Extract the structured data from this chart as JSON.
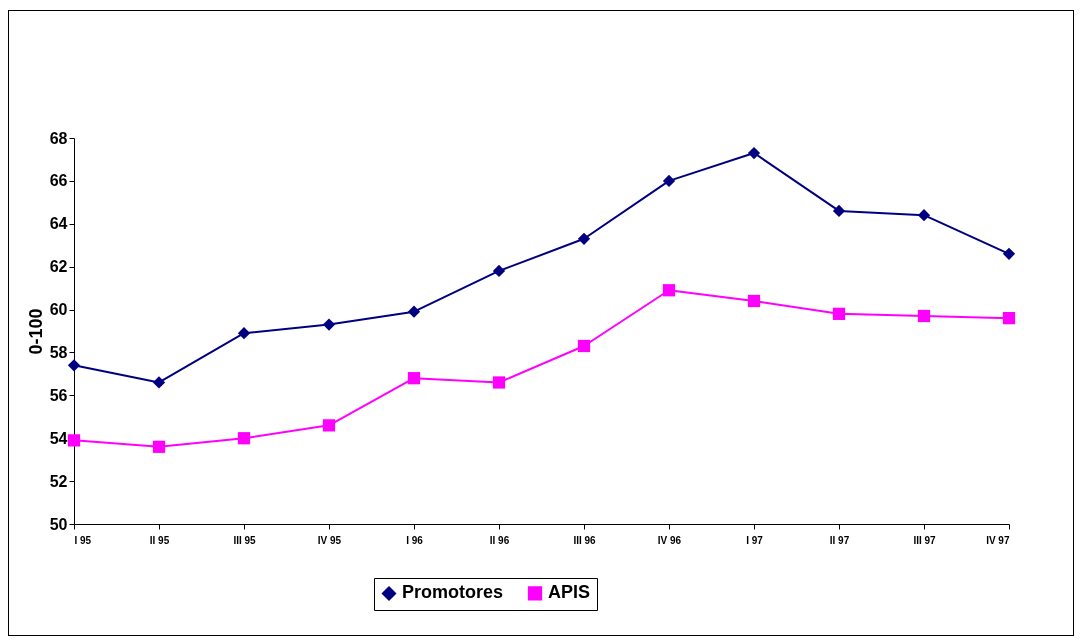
{
  "chart_data": {
    "type": "line",
    "ylabel": "0-100",
    "categories": [
      "I 95",
      "II 95",
      "III 95",
      "IV 95",
      "I 96",
      "II 96",
      "III 96",
      "IV 96",
      "I 97",
      "II 97",
      "III 97",
      "IV 97"
    ],
    "series": [
      {
        "name": "Promotores",
        "color": "#000080",
        "marker": "diamond",
        "values": [
          57.4,
          56.6,
          58.9,
          59.3,
          59.9,
          61.8,
          63.3,
          66.0,
          67.3,
          64.6,
          64.4,
          62.6
        ]
      },
      {
        "name": "APIS",
        "color": "#ff00ff",
        "marker": "square",
        "values": [
          53.9,
          53.6,
          54.0,
          54.6,
          56.8,
          56.6,
          58.3,
          60.9,
          60.4,
          59.8,
          59.7,
          59.6
        ]
      }
    ],
    "ylim": [
      50,
      68
    ],
    "yticks": [
      50,
      52,
      54,
      56,
      58,
      60,
      62,
      64,
      66,
      68
    ],
    "grid": false,
    "legend": "bottom",
    "line_style": "solid"
  }
}
